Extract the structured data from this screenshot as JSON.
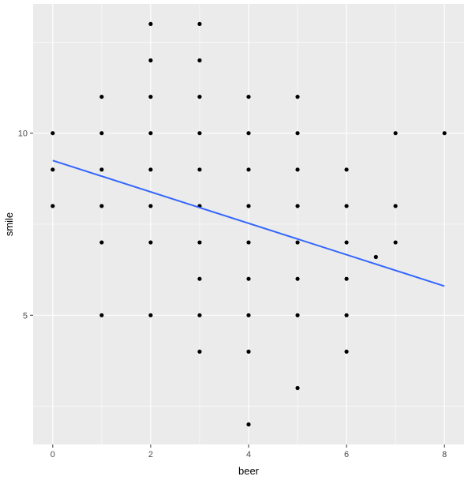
{
  "chart_data": {
    "type": "scatter",
    "title": "",
    "xlabel": "beer",
    "ylabel": "smile",
    "xlim": [
      -0.4,
      8.4
    ],
    "ylim": [
      1.45,
      13.55
    ],
    "x_ticks": [
      0,
      2,
      4,
      6,
      8
    ],
    "y_ticks": [
      5,
      10
    ],
    "grid": true,
    "colors": {
      "panel": "#ebebeb",
      "grid": "#ffffff",
      "point": "#000000",
      "trend": "#3366ff",
      "tick_label": "#4d4d4d",
      "tick_mark": "#333333"
    },
    "points": [
      {
        "x": 0,
        "y": 10
      },
      {
        "x": 0,
        "y": 9
      },
      {
        "x": 0,
        "y": 8
      },
      {
        "x": 1,
        "y": 11
      },
      {
        "x": 1,
        "y": 10
      },
      {
        "x": 1,
        "y": 9
      },
      {
        "x": 1,
        "y": 8
      },
      {
        "x": 1,
        "y": 7
      },
      {
        "x": 1,
        "y": 5
      },
      {
        "x": 2,
        "y": 13
      },
      {
        "x": 2,
        "y": 12
      },
      {
        "x": 2,
        "y": 11
      },
      {
        "x": 2,
        "y": 10
      },
      {
        "x": 2,
        "y": 9
      },
      {
        "x": 2,
        "y": 8
      },
      {
        "x": 2,
        "y": 7
      },
      {
        "x": 2,
        "y": 5
      },
      {
        "x": 3,
        "y": 13
      },
      {
        "x": 3,
        "y": 12
      },
      {
        "x": 3,
        "y": 11
      },
      {
        "x": 3,
        "y": 10
      },
      {
        "x": 3,
        "y": 9
      },
      {
        "x": 3,
        "y": 8
      },
      {
        "x": 3,
        "y": 7
      },
      {
        "x": 3,
        "y": 6
      },
      {
        "x": 3,
        "y": 5
      },
      {
        "x": 3,
        "y": 4
      },
      {
        "x": 4,
        "y": 11
      },
      {
        "x": 4,
        "y": 10
      },
      {
        "x": 4,
        "y": 9
      },
      {
        "x": 4,
        "y": 8
      },
      {
        "x": 4,
        "y": 7
      },
      {
        "x": 4,
        "y": 6
      },
      {
        "x": 4,
        "y": 5
      },
      {
        "x": 4,
        "y": 4
      },
      {
        "x": 4,
        "y": 2
      },
      {
        "x": 5,
        "y": 11
      },
      {
        "x": 5,
        "y": 10
      },
      {
        "x": 5,
        "y": 9
      },
      {
        "x": 5,
        "y": 8
      },
      {
        "x": 5,
        "y": 7
      },
      {
        "x": 5,
        "y": 6
      },
      {
        "x": 5,
        "y": 5
      },
      {
        "x": 5,
        "y": 3
      },
      {
        "x": 6,
        "y": 9
      },
      {
        "x": 6,
        "y": 8
      },
      {
        "x": 6,
        "y": 7
      },
      {
        "x": 6,
        "y": 6
      },
      {
        "x": 6,
        "y": 5
      },
      {
        "x": 6,
        "y": 4
      },
      {
        "x": 6.6,
        "y": 6.6
      },
      {
        "x": 7,
        "y": 10
      },
      {
        "x": 7,
        "y": 8
      },
      {
        "x": 7,
        "y": 7
      },
      {
        "x": 8,
        "y": 10
      }
    ],
    "trend_line": {
      "x": [
        0,
        8
      ],
      "y": [
        9.25,
        5.8
      ]
    }
  }
}
